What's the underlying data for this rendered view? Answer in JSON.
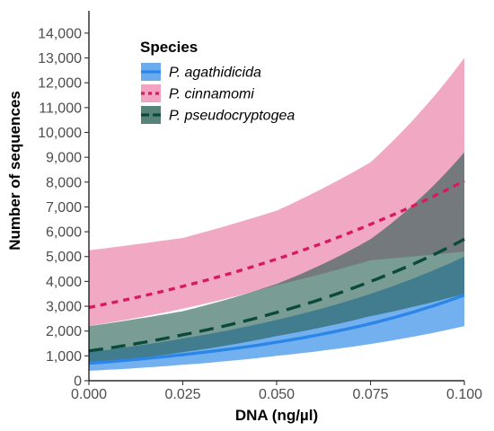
{
  "chart_data": {
    "type": "line",
    "xlabel": "DNA (ng/µl)",
    "ylabel": "Number of sequences",
    "xlim": [
      0,
      0.1
    ],
    "ylim": [
      0,
      14900
    ],
    "x_ticks": [
      0,
      0.025,
      0.05,
      0.075,
      0.1
    ],
    "x_tick_labels": [
      "0.000",
      "0.025",
      "0.050",
      "0.075",
      "0.100"
    ],
    "y_ticks": [
      0,
      1000,
      2000,
      3000,
      4000,
      5000,
      6000,
      7000,
      8000,
      9000,
      10000,
      11000,
      12000,
      13000,
      14000
    ],
    "y_tick_labels": [
      "0",
      "1,000",
      "2,000",
      "3,000",
      "4,000",
      "5,000",
      "6,000",
      "7,000",
      "8,000",
      "9,000",
      "10,000",
      "11,000",
      "12,000",
      "13,000",
      "14,000"
    ],
    "grid": false,
    "legend": {
      "title": "Species",
      "position": "top-left",
      "entries": [
        "P. agathidicida",
        "P. cinnamomi",
        "P. pseudocryptogea"
      ]
    },
    "series": [
      {
        "name": "P. agathidicida",
        "line_color": "#2b86e8",
        "band_color": "#5aa2ec",
        "dash": "solid",
        "x": [
          0,
          0.025,
          0.05,
          0.075,
          0.1
        ],
        "fit": [
          700,
          1050,
          1550,
          2300,
          3450
        ],
        "lower": [
          400,
          640,
          1000,
          1480,
          2200
        ],
        "upper": [
          1150,
          1700,
          2450,
          3500,
          5000
        ]
      },
      {
        "name": "P. cinnamomi",
        "line_color": "#d81b60",
        "band_color": "#ee9ab8",
        "dash": "dotted",
        "x": [
          0,
          0.025,
          0.05,
          0.075,
          0.1
        ],
        "fit": [
          2950,
          3800,
          4900,
          6300,
          8050
        ],
        "lower": [
          2200,
          2900,
          3850,
          4850,
          5200
        ],
        "upper": [
          5250,
          5750,
          6850,
          8800,
          13000
        ]
      },
      {
        "name": "P. pseudocryptogea",
        "line_color": "#0b4a3a",
        "band_color": "#1f5a4e",
        "dash": "dashed",
        "x": [
          0,
          0.025,
          0.05,
          0.075,
          0.1
        ],
        "fit": [
          1200,
          1850,
          2750,
          4000,
          5700
        ],
        "lower": [
          700,
          1150,
          1800,
          2600,
          3500
        ],
        "upper": [
          2200,
          2800,
          3900,
          5700,
          9200
        ]
      }
    ]
  }
}
